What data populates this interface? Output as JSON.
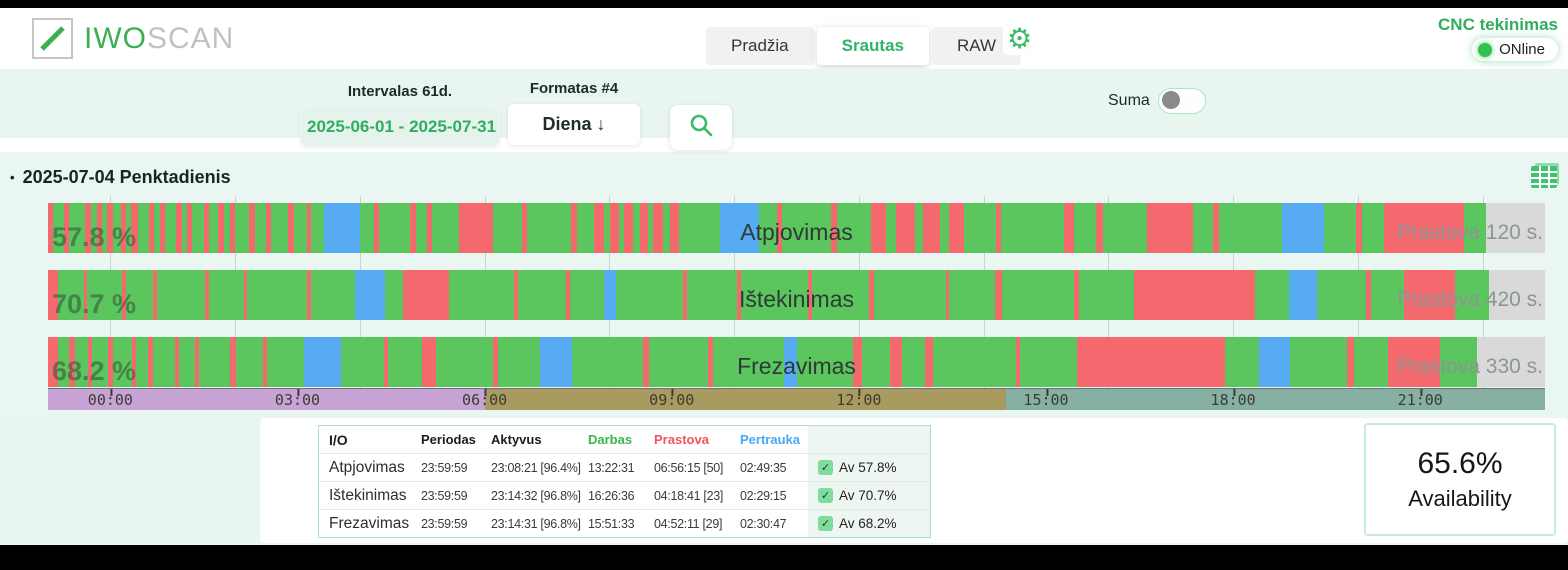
{
  "icons": {
    "gear": "⚙",
    "check": "✓",
    "arrow_down": "↓",
    "bullet": "•"
  },
  "header": {
    "logo": {
      "green": "IWO",
      "gray": "SCAN"
    },
    "tabs": [
      {
        "label": "Pradžia",
        "active": false
      },
      {
        "label": "Srautas",
        "active": true
      },
      {
        "label": "RAW",
        "active": false
      }
    ],
    "machine": {
      "name": "CNC tekinimas",
      "status": "ONline"
    }
  },
  "filters": {
    "interval_label": "Intervalas 61d.",
    "interval_value": "2025-06-01 - 2025-07-31",
    "format_label": "Formatas #4",
    "format_value": "Diena",
    "suma_label": "Suma",
    "suma_on": false
  },
  "timeline": {
    "heading": "2025-07-04 Penktadienis",
    "colors": {
      "work": "#5bc55e",
      "downtime": "#f4696e",
      "break": "#57abf2",
      "idle": "#d9d9d9"
    },
    "bars": [
      {
        "name": "Atpjovimas",
        "percent": "57.8 %",
        "right_label": "Prastova 120 s.",
        "segments": [
          [
            "r",
            4
          ],
          [
            "g",
            9
          ],
          [
            "r",
            4
          ],
          [
            "g",
            13
          ],
          [
            "r",
            5
          ],
          [
            "g",
            5
          ],
          [
            "r",
            4
          ],
          [
            "g",
            4
          ],
          [
            "r",
            5
          ],
          [
            "g",
            7
          ],
          [
            "r",
            4
          ],
          [
            "g",
            4
          ],
          [
            "r",
            6
          ],
          [
            "g",
            9
          ],
          [
            "r",
            4
          ],
          [
            "g",
            5
          ],
          [
            "r",
            4
          ],
          [
            "g",
            9
          ],
          [
            "r",
            5
          ],
          [
            "g",
            4
          ],
          [
            "r",
            4
          ],
          [
            "g",
            10
          ],
          [
            "r",
            4
          ],
          [
            "g",
            7
          ],
          [
            "r",
            5
          ],
          [
            "g",
            5
          ],
          [
            "r",
            4
          ],
          [
            "g",
            12
          ],
          [
            "r",
            5
          ],
          [
            "g",
            9
          ],
          [
            "r",
            4
          ],
          [
            "g",
            14
          ],
          [
            "r",
            5
          ],
          [
            "g",
            10
          ],
          [
            "r",
            4
          ],
          [
            "g",
            10
          ],
          [
            "b",
            30
          ],
          [
            "g",
            11
          ],
          [
            "r",
            4
          ],
          [
            "g",
            26
          ],
          [
            "r",
            5
          ],
          [
            "g",
            9
          ],
          [
            "r",
            4
          ],
          [
            "g",
            22
          ],
          [
            "r",
            28
          ],
          [
            "g",
            24
          ],
          [
            "r",
            4
          ],
          [
            "g",
            36
          ],
          [
            "r",
            5
          ],
          [
            "g",
            14
          ],
          [
            "r",
            8
          ],
          [
            "g",
            5
          ],
          [
            "r",
            7
          ],
          [
            "g",
            4
          ],
          [
            "r",
            8
          ],
          [
            "g",
            5
          ],
          [
            "r",
            7
          ],
          [
            "g",
            4
          ],
          [
            "r",
            8
          ],
          [
            "g",
            6
          ],
          [
            "r",
            7
          ],
          [
            "g",
            34
          ],
          [
            "b",
            32
          ],
          [
            "g",
            15
          ],
          [
            "r",
            4
          ],
          [
            "g",
            40
          ],
          [
            "r",
            5
          ],
          [
            "g",
            28
          ],
          [
            "r",
            12
          ],
          [
            "g",
            8
          ],
          [
            "r",
            16
          ],
          [
            "g",
            6
          ],
          [
            "r",
            14
          ],
          [
            "g",
            8
          ],
          [
            "r",
            12
          ],
          [
            "g",
            26
          ],
          [
            "r",
            4
          ],
          [
            "g",
            52
          ],
          [
            "r",
            8
          ],
          [
            "g",
            18
          ],
          [
            "r",
            6
          ],
          [
            "g",
            36
          ],
          [
            "r",
            38
          ],
          [
            "g",
            16
          ],
          [
            "r",
            5
          ],
          [
            "g",
            52
          ],
          [
            "b",
            34
          ],
          [
            "g",
            26
          ],
          [
            "r",
            5
          ],
          [
            "g",
            18
          ],
          [
            "r",
            66
          ],
          [
            "g",
            18
          ],
          [
            "x",
            48
          ]
        ]
      },
      {
        "name": "Ištekinimas",
        "percent": "70.7 %",
        "right_label": "Prastova 420 s.",
        "segments": [
          [
            "r",
            9
          ],
          [
            "g",
            22
          ],
          [
            "r",
            3
          ],
          [
            "g",
            30
          ],
          [
            "r",
            3
          ],
          [
            "g",
            24
          ],
          [
            "r",
            3
          ],
          [
            "g",
            42
          ],
          [
            "r",
            3
          ],
          [
            "g",
            30
          ],
          [
            "r",
            3
          ],
          [
            "g",
            52
          ],
          [
            "r",
            3
          ],
          [
            "g",
            38
          ],
          [
            "b",
            26
          ],
          [
            "g",
            16
          ],
          [
            "r",
            40
          ],
          [
            "g",
            56
          ],
          [
            "r",
            3
          ],
          [
            "g",
            42
          ],
          [
            "r",
            3
          ],
          [
            "g",
            30
          ],
          [
            "b",
            10
          ],
          [
            "g",
            58
          ],
          [
            "r",
            3
          ],
          [
            "g",
            44
          ],
          [
            "r",
            3
          ],
          [
            "g",
            58
          ],
          [
            "r",
            3
          ],
          [
            "g",
            50
          ],
          [
            "r",
            4
          ],
          [
            "g",
            62
          ],
          [
            "r",
            3
          ],
          [
            "g",
            40
          ],
          [
            "r",
            6
          ],
          [
            "g",
            62
          ],
          [
            "r",
            4
          ],
          [
            "g",
            48
          ],
          [
            "r",
            104
          ],
          [
            "g",
            30
          ],
          [
            "b",
            24
          ],
          [
            "g",
            42
          ],
          [
            "r",
            5
          ],
          [
            "g",
            28
          ],
          [
            "r",
            44
          ],
          [
            "g",
            30
          ],
          [
            "x",
            48
          ]
        ]
      },
      {
        "name": "Frezavimas",
        "percent": "68.2 %",
        "right_label": "Prastova 330 s.",
        "segments": [
          [
            "r",
            7
          ],
          [
            "g",
            8
          ],
          [
            "r",
            4
          ],
          [
            "g",
            9
          ],
          [
            "r",
            3
          ],
          [
            "g",
            11
          ],
          [
            "r",
            4
          ],
          [
            "g",
            13
          ],
          [
            "r",
            3
          ],
          [
            "g",
            8
          ],
          [
            "r",
            4
          ],
          [
            "g",
            15
          ],
          [
            "r",
            3
          ],
          [
            "g",
            11
          ],
          [
            "r",
            3
          ],
          [
            "g",
            22
          ],
          [
            "r",
            4
          ],
          [
            "g",
            19
          ],
          [
            "r",
            3
          ],
          [
            "g",
            26
          ],
          [
            "b",
            26
          ],
          [
            "g",
            30
          ],
          [
            "r",
            3
          ],
          [
            "g",
            24
          ],
          [
            "r",
            10
          ],
          [
            "g",
            40
          ],
          [
            "r",
            3
          ],
          [
            "g",
            30
          ],
          [
            "b",
            22
          ],
          [
            "g",
            50
          ],
          [
            "r",
            4
          ],
          [
            "g",
            42
          ],
          [
            "r",
            3
          ],
          [
            "g",
            50
          ],
          [
            "b",
            9
          ],
          [
            "g",
            40
          ],
          [
            "r",
            6
          ],
          [
            "g",
            20
          ],
          [
            "r",
            8
          ],
          [
            "g",
            16
          ],
          [
            "r",
            6
          ],
          [
            "g",
            58
          ],
          [
            "r",
            3
          ],
          [
            "g",
            40
          ],
          [
            "r",
            104
          ],
          [
            "g",
            24
          ],
          [
            "b",
            22
          ],
          [
            "g",
            40
          ],
          [
            "r",
            5
          ],
          [
            "g",
            24
          ],
          [
            "r",
            36
          ],
          [
            "g",
            26
          ],
          [
            "x",
            48
          ]
        ]
      }
    ],
    "axis": {
      "labels": [
        "00:00",
        "03:00",
        "06:00",
        "09:00",
        "12:00",
        "15:00",
        "18:00",
        "21:00"
      ],
      "bands": [
        {
          "name": "night-shift",
          "color": "#c7a3d6",
          "from": 0,
          "to": 29.17
        },
        {
          "name": "day-shift",
          "color": "#a99b60",
          "from": 29.17,
          "to": 64
        },
        {
          "name": "evening-shift",
          "color": "#86b0a4",
          "from": 64,
          "to": 100
        }
      ]
    }
  },
  "summary": {
    "table": {
      "headers": [
        {
          "label": "I/O",
          "color": "#1c1c1c"
        },
        {
          "label": "Periodas",
          "color": "#1c1c1c"
        },
        {
          "label": "Aktyvus",
          "color": "#1c1c1c"
        },
        {
          "label": "Darbas",
          "color": "#3bb54a"
        },
        {
          "label": "Prastova",
          "color": "#f2555a"
        },
        {
          "label": "Pertrauka",
          "color": "#47a8f5"
        }
      ],
      "rows": [
        {
          "io": "Atpjovimas",
          "periodas": "23:59:59",
          "aktyvus": "23:08:21 [96.4%]",
          "darbas": "13:22:31",
          "prastova": "06:56:15 [50]",
          "pertrauka": "02:49:35",
          "av": "Av 57.8%",
          "checked": true
        },
        {
          "io": "Ištekinimas",
          "periodas": "23:59:59",
          "aktyvus": "23:14:32 [96.8%]",
          "darbas": "16:26:36",
          "prastova": "04:18:41 [23]",
          "pertrauka": "02:29:15",
          "av": "Av 70.7%",
          "checked": true
        },
        {
          "io": "Frezavimas",
          "periodas": "23:59:59",
          "aktyvus": "23:14:31 [96.8%]",
          "darbas": "15:51:33",
          "prastova": "04:52:11 [29]",
          "pertrauka": "02:30:47",
          "av": "Av 68.2%",
          "checked": true
        }
      ]
    },
    "availability": {
      "value": "65.6%",
      "label": "Availability"
    }
  }
}
